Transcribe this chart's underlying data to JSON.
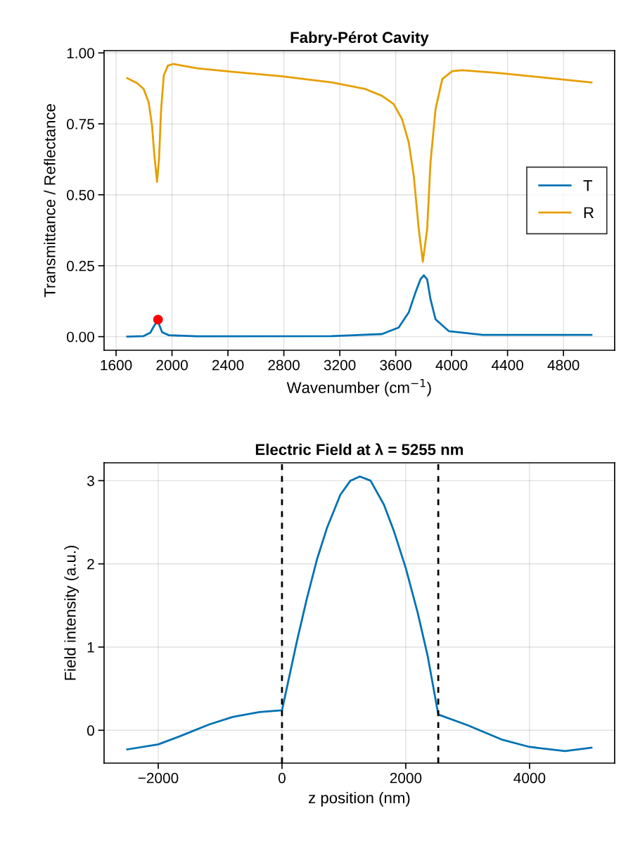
{
  "chart_data": [
    {
      "type": "line",
      "title": "Fabry-Pérot Cavity",
      "xlabel": "Wavenumber (cm$^{−1}$)",
      "ylabel": "Transmittance / Reflectance",
      "xlim": [
        1514,
        5166
      ],
      "ylim": [
        -0.048,
        1.008
      ],
      "xticks": [
        1600,
        2000,
        2400,
        2800,
        3200,
        3600,
        4000,
        4400,
        4800
      ],
      "yticks": [
        {
          "value": 0,
          "label": "0.00"
        },
        {
          "value": 0.25,
          "label": "0.25"
        },
        {
          "value": 0.5,
          "label": "0.50"
        },
        {
          "value": 0.75,
          "label": "0.75"
        },
        {
          "value": 1.0,
          "label": "1.00"
        }
      ],
      "grid": true,
      "legend": "right",
      "marker": "none",
      "line_style": "solid",
      "series": [
        {
          "name": "T",
          "color": "#0072b2",
          "x": [
            1680,
            1797,
            1845,
            1874,
            1893,
            1907,
            1929,
            1977,
            2181,
            3141,
            3501,
            3621,
            3693,
            3741,
            3777,
            3801,
            3825,
            3849,
            3885,
            3981,
            4221,
            5000
          ],
          "values": [
            0.0,
            0.002,
            0.014,
            0.04,
            0.052,
            0.044,
            0.016,
            0.005,
            0.001,
            0.002,
            0.009,
            0.032,
            0.085,
            0.155,
            0.202,
            0.216,
            0.202,
            0.132,
            0.061,
            0.019,
            0.006,
            0.006
          ]
        },
        {
          "name": "R",
          "color": "#e69f00",
          "x": [
            1680,
            1749,
            1797,
            1833,
            1857,
            1874,
            1893,
            1907,
            1922,
            1941,
            1970,
            2008,
            2181,
            2421,
            2781,
            3141,
            3381,
            3501,
            3585,
            3645,
            3693,
            3729,
            3765,
            3794,
            3825,
            3849,
            3885,
            3933,
            4005,
            4077,
            4341,
            4701,
            5000
          ],
          "values": [
            0.911,
            0.894,
            0.873,
            0.826,
            0.744,
            0.638,
            0.546,
            0.626,
            0.8,
            0.92,
            0.955,
            0.961,
            0.946,
            0.934,
            0.918,
            0.896,
            0.873,
            0.849,
            0.82,
            0.767,
            0.685,
            0.567,
            0.379,
            0.264,
            0.379,
            0.614,
            0.802,
            0.908,
            0.936,
            0.939,
            0.929,
            0.911,
            0.896
          ]
        },
        {
          "type": "scatter",
          "marker": "circle",
          "color": "#ff0000",
          "x": [
            1900
          ],
          "values": [
            0.06
          ]
        }
      ]
    },
    {
      "type": "line",
      "title": "Electric Field at λ = 5255 nm",
      "xlabel": "z position (nm)",
      "ylabel": "Field intensity (a.u.)",
      "xlim": [
        -2875,
        5375
      ],
      "ylim": [
        -0.395,
        3.215
      ],
      "xticks": [
        {
          "value": -2000,
          "label": "−2000"
        },
        0,
        2000,
        4000
      ],
      "yticks": [
        0,
        1,
        2,
        3
      ],
      "grid": true,
      "marker": "none",
      "line_style": "solid",
      "ref_lines": [
        {
          "axis": "x",
          "value": 0,
          "color": "#000000",
          "line_style": "dashed"
        },
        {
          "axis": "x",
          "value": 2525,
          "color": "#000000",
          "line_style": "dashed"
        }
      ],
      "series": [
        {
          "color": "#0072b2",
          "x": [
            -2500,
            -2000,
            -1610,
            -1176,
            -797,
            -363,
            0,
            238,
            401,
            564,
            726,
            943,
            1106,
            1257,
            1431,
            1648,
            1810,
            2000,
            2190,
            2352,
            2525,
            3003,
            3545,
            4000,
            4575,
            5000
          ],
          "values": [
            -0.23,
            -0.17,
            -0.06,
            0.07,
            0.16,
            0.22,
            0.24,
            1.06,
            1.58,
            2.05,
            2.43,
            2.83,
            3.0,
            3.05,
            3.0,
            2.71,
            2.39,
            1.95,
            1.42,
            0.9,
            0.19,
            0.06,
            -0.11,
            -0.2,
            -0.25,
            -0.21
          ]
        }
      ]
    }
  ]
}
